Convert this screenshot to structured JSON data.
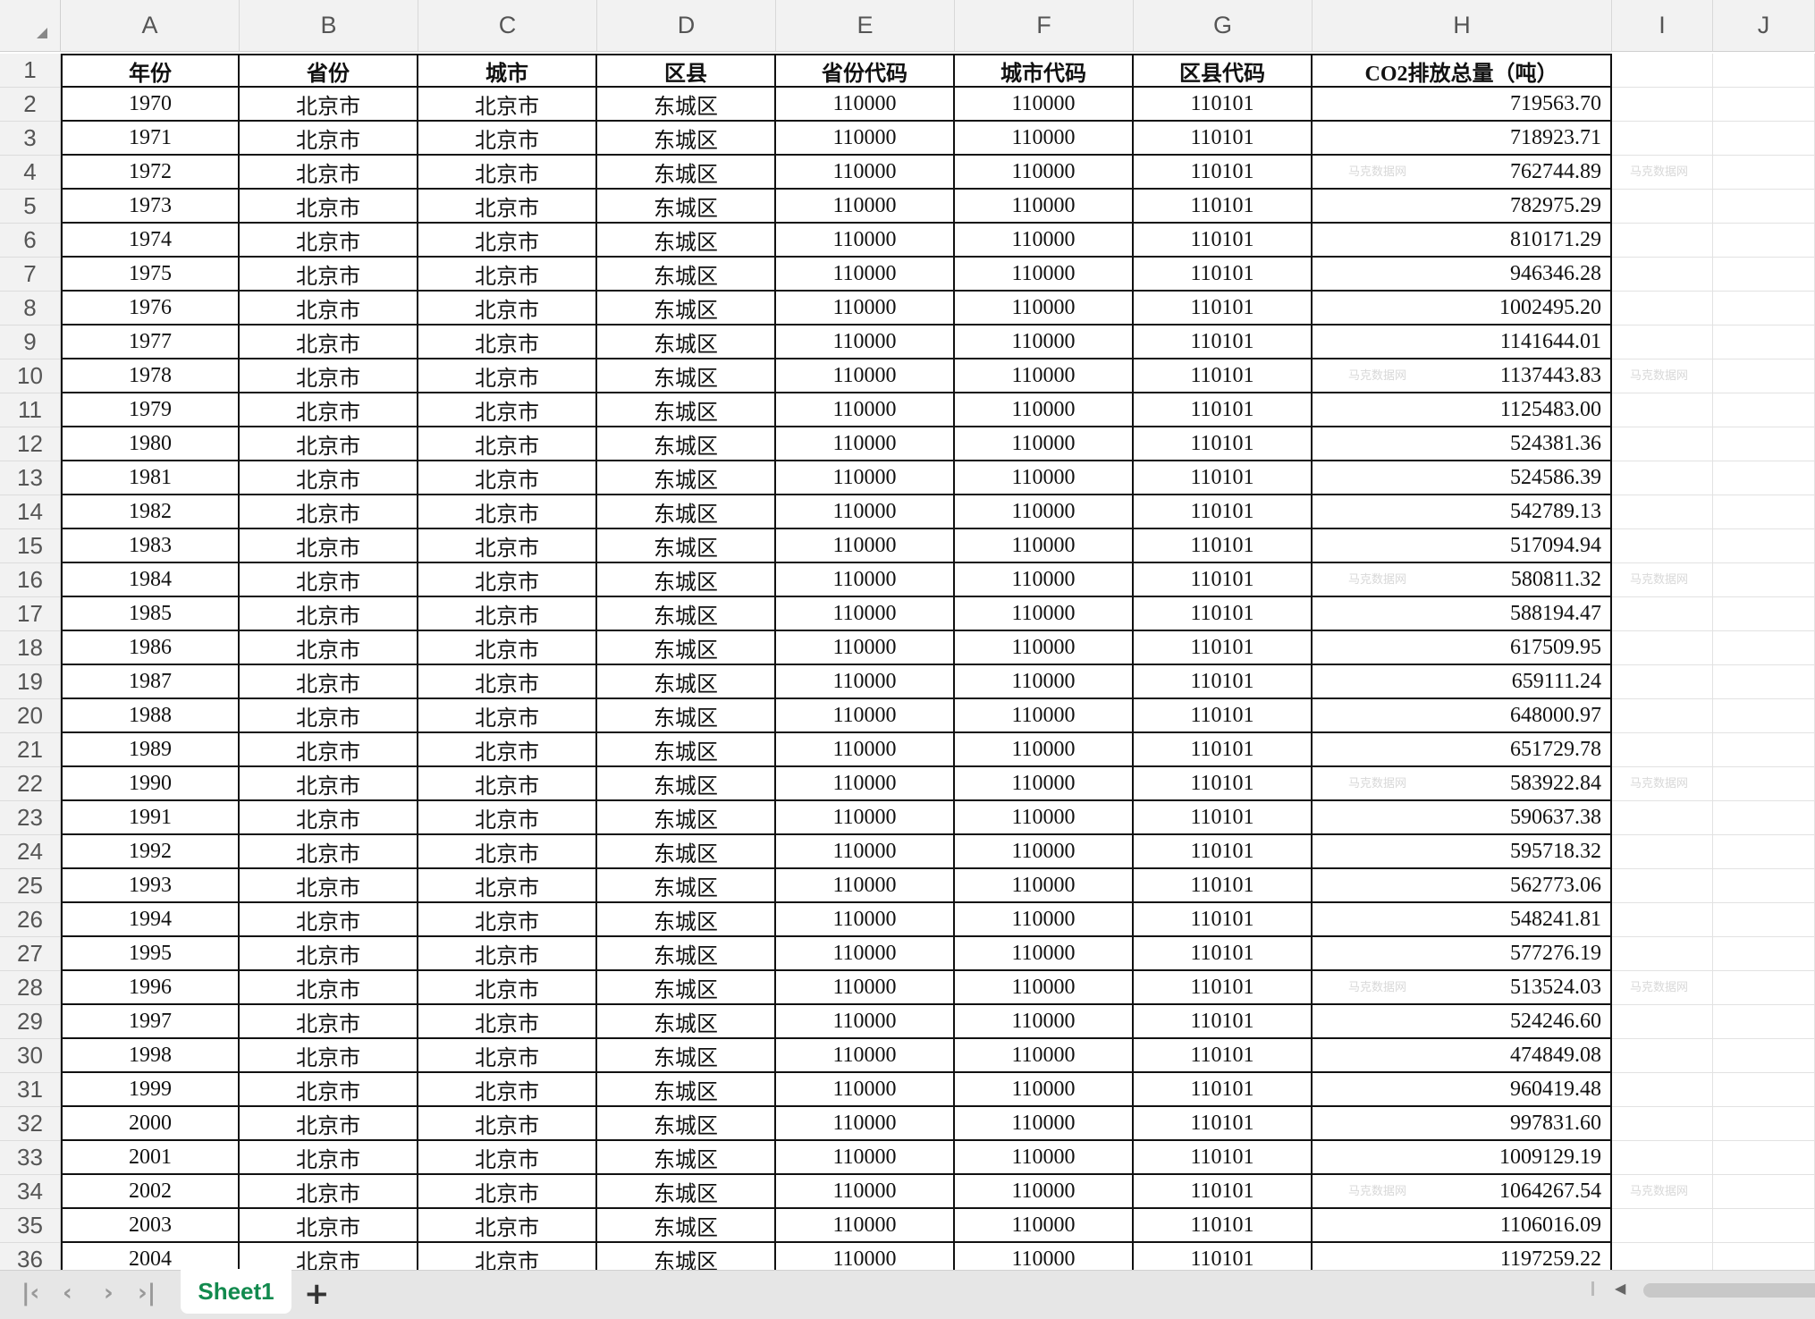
{
  "columns": [
    "A",
    "B",
    "C",
    "D",
    "E",
    "F",
    "G",
    "H",
    "I",
    "J"
  ],
  "headers": [
    "年份",
    "省份",
    "城市",
    "区县",
    "省份代码",
    "城市代码",
    "区县代码",
    "CO2排放总量（吨）"
  ],
  "province": "北京市",
  "city": "北京市",
  "district": "东城区",
  "province_code": "110000",
  "city_code": "110000",
  "district_code": "110101",
  "rows": [
    [
      "1970",
      "719563.70"
    ],
    [
      "1971",
      "718923.71"
    ],
    [
      "1972",
      "762744.89"
    ],
    [
      "1973",
      "782975.29"
    ],
    [
      "1974",
      "810171.29"
    ],
    [
      "1975",
      "946346.28"
    ],
    [
      "1976",
      "1002495.20"
    ],
    [
      "1977",
      "1141644.01"
    ],
    [
      "1978",
      "1137443.83"
    ],
    [
      "1979",
      "1125483.00"
    ],
    [
      "1980",
      "524381.36"
    ],
    [
      "1981",
      "524586.39"
    ],
    [
      "1982",
      "542789.13"
    ],
    [
      "1983",
      "517094.94"
    ],
    [
      "1984",
      "580811.32"
    ],
    [
      "1985",
      "588194.47"
    ],
    [
      "1986",
      "617509.95"
    ],
    [
      "1987",
      "659111.24"
    ],
    [
      "1988",
      "648000.97"
    ],
    [
      "1989",
      "651729.78"
    ],
    [
      "1990",
      "583922.84"
    ],
    [
      "1991",
      "590637.38"
    ],
    [
      "1992",
      "595718.32"
    ],
    [
      "1993",
      "562773.06"
    ],
    [
      "1994",
      "548241.81"
    ],
    [
      "1995",
      "577276.19"
    ],
    [
      "1996",
      "513524.03"
    ],
    [
      "1997",
      "524246.60"
    ],
    [
      "1998",
      "474849.08"
    ],
    [
      "1999",
      "960419.48"
    ],
    [
      "2000",
      "997831.60"
    ],
    [
      "2001",
      "1009129.19"
    ],
    [
      "2002",
      "1064267.54"
    ],
    [
      "2003",
      "1106016.09"
    ],
    [
      "2004",
      "1197259.22"
    ]
  ],
  "watermark": "马克数据网",
  "sheet_tab": "Sheet1",
  "add_sheet": "+",
  "nav_icons": [
    "first-sheet-icon",
    "prev-sheet-icon",
    "next-sheet-icon",
    "last-sheet-icon"
  ],
  "colors": {
    "tab_text": "#128a4e",
    "header_bg": "#f2f2f2"
  }
}
